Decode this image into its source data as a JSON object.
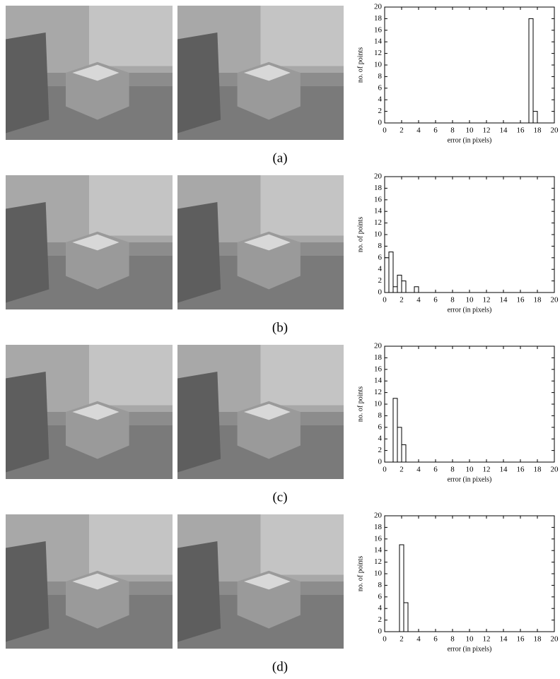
{
  "chart_data": [
    {
      "type": "histogram",
      "xlabel": "error (in pixels)",
      "ylabel": "no. of points",
      "bins": [
        17,
        17.5,
        18
      ],
      "counts": [
        18,
        2
      ],
      "xlim": [
        0,
        20
      ],
      "xticks": [
        0,
        2,
        4,
        6,
        8,
        10,
        12,
        14,
        16,
        18,
        20
      ],
      "ylim": [
        0,
        20
      ],
      "yticks": [
        0,
        2,
        4,
        6,
        8,
        10,
        12,
        14,
        16,
        18,
        20
      ],
      "color": "#ffffff"
    },
    {
      "type": "histogram",
      "xlabel": "error (in pixels)",
      "ylabel": "no. of points",
      "bins": [
        0,
        0.5,
        1,
        1.5,
        2,
        2.5,
        3,
        3.5,
        4
      ],
      "counts": [
        6,
        7,
        1,
        3,
        2,
        0,
        0,
        1
      ],
      "xlim": [
        0,
        20
      ],
      "xticks": [
        0,
        2,
        4,
        6,
        8,
        10,
        12,
        14,
        16,
        18,
        20
      ],
      "ylim": [
        0,
        20
      ],
      "yticks": [
        0,
        2,
        4,
        6,
        8,
        10,
        12,
        14,
        16,
        18,
        20
      ],
      "color": "#ffffff"
    },
    {
      "type": "histogram",
      "xlabel": "error (in pixels)",
      "ylabel": "no. of points",
      "bins": [
        1,
        1.5,
        2,
        2.5
      ],
      "counts": [
        11,
        6,
        3
      ],
      "xlim": [
        0,
        20
      ],
      "xticks": [
        0,
        2,
        4,
        6,
        8,
        10,
        12,
        14,
        16,
        18,
        20
      ],
      "ylim": [
        0,
        20
      ],
      "yticks": [
        0,
        2,
        4,
        6,
        8,
        10,
        12,
        14,
        16,
        18,
        20
      ],
      "color": "#ffffff"
    },
    {
      "type": "histogram",
      "xlabel": "error (in pixels)",
      "ylabel": "no. of points",
      "bins": [
        1.75,
        2.25,
        2.75
      ],
      "counts": [
        15,
        5
      ],
      "xlim": [
        0,
        20
      ],
      "xticks": [
        0,
        2,
        4,
        6,
        8,
        10,
        12,
        14,
        16,
        18,
        20
      ],
      "ylim": [
        0,
        20
      ],
      "yticks": [
        0,
        2,
        4,
        6,
        8,
        10,
        12,
        14,
        16,
        18,
        20
      ],
      "color": "#ffffff"
    }
  ],
  "captions": [
    "(a)",
    "(b)",
    "(c)",
    "(d)"
  ]
}
